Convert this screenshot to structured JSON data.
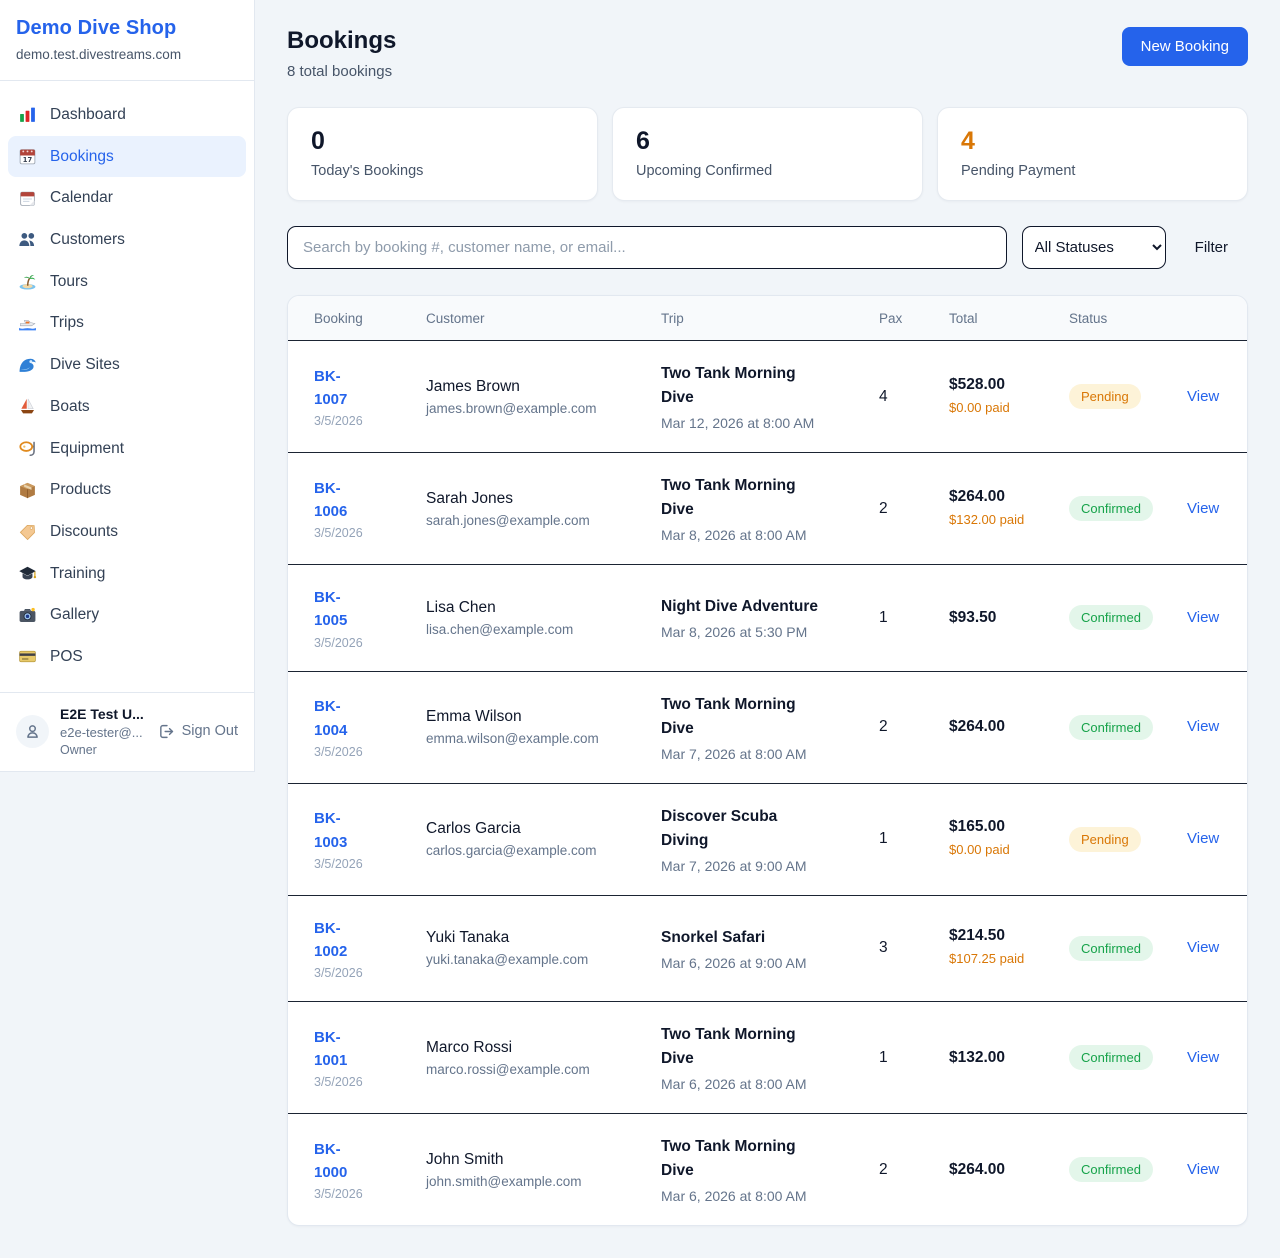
{
  "brand": {
    "name": "Demo Dive Shop",
    "domain": "demo.test.divestreams.com"
  },
  "sidebar": {
    "items": [
      {
        "label": "Dashboard",
        "icon": "dashboard",
        "active": false
      },
      {
        "label": "Bookings",
        "icon": "bookings",
        "active": true
      },
      {
        "label": "Calendar",
        "icon": "calendar",
        "active": false
      },
      {
        "label": "Customers",
        "icon": "customers",
        "active": false
      },
      {
        "label": "Tours",
        "icon": "tours",
        "active": false
      },
      {
        "label": "Trips",
        "icon": "trips",
        "active": false
      },
      {
        "label": "Dive Sites",
        "icon": "dive-sites",
        "active": false
      },
      {
        "label": "Boats",
        "icon": "boats",
        "active": false
      },
      {
        "label": "Equipment",
        "icon": "equipment",
        "active": false
      },
      {
        "label": "Products",
        "icon": "products",
        "active": false
      },
      {
        "label": "Discounts",
        "icon": "discounts",
        "active": false
      },
      {
        "label": "Training",
        "icon": "training",
        "active": false
      },
      {
        "label": "Gallery",
        "icon": "gallery",
        "active": false
      },
      {
        "label": "POS",
        "icon": "pos",
        "active": false
      }
    ]
  },
  "user": {
    "name": "E2E Test U...",
    "email": "e2e-tester@...",
    "role": "Owner",
    "sign_out_label": "Sign Out"
  },
  "header": {
    "title": "Bookings",
    "subtitle": "8 total bookings",
    "new_booking_label": "New Booking"
  },
  "stats": [
    {
      "value": "0",
      "label": "Today's Bookings",
      "highlight": false
    },
    {
      "value": "6",
      "label": "Upcoming Confirmed",
      "highlight": false
    },
    {
      "value": "4",
      "label": "Pending Payment",
      "highlight": true
    }
  ],
  "filters": {
    "search_placeholder": "Search by booking #, customer name, or email...",
    "status_selected": "All Statuses",
    "filter_label": "Filter"
  },
  "table": {
    "columns": [
      "Booking",
      "Customer",
      "Trip",
      "Pax",
      "Total",
      "Status"
    ],
    "view_label": "View",
    "rows": [
      {
        "booking_id": "BK-1007",
        "booking_date": "3/5/2026",
        "customer_name": "James Brown",
        "customer_email": "james.brown@example.com",
        "trip_name": "Two Tank Morning Dive",
        "trip_datetime": "Mar 12, 2026 at 8:00 AM",
        "pax": "4",
        "total": "$528.00",
        "paid": "$0.00 paid",
        "status": "Pending"
      },
      {
        "booking_id": "BK-1006",
        "booking_date": "3/5/2026",
        "customer_name": "Sarah Jones",
        "customer_email": "sarah.jones@example.com",
        "trip_name": "Two Tank Morning Dive",
        "trip_datetime": "Mar 8, 2026 at 8:00 AM",
        "pax": "2",
        "total": "$264.00",
        "paid": "$132.00 paid",
        "status": "Confirmed"
      },
      {
        "booking_id": "BK-1005",
        "booking_date": "3/5/2026",
        "customer_name": "Lisa Chen",
        "customer_email": "lisa.chen@example.com",
        "trip_name": "Night Dive Adventure",
        "trip_datetime": "Mar 8, 2026 at 5:30 PM",
        "pax": "1",
        "total": "$93.50",
        "paid": "",
        "status": "Confirmed"
      },
      {
        "booking_id": "BK-1004",
        "booking_date": "3/5/2026",
        "customer_name": "Emma Wilson",
        "customer_email": "emma.wilson@example.com",
        "trip_name": "Two Tank Morning Dive",
        "trip_datetime": "Mar 7, 2026 at 8:00 AM",
        "pax": "2",
        "total": "$264.00",
        "paid": "",
        "status": "Confirmed"
      },
      {
        "booking_id": "BK-1003",
        "booking_date": "3/5/2026",
        "customer_name": "Carlos Garcia",
        "customer_email": "carlos.garcia@example.com",
        "trip_name": "Discover Scuba Diving",
        "trip_datetime": "Mar 7, 2026 at 9:00 AM",
        "pax": "1",
        "total": "$165.00",
        "paid": "$0.00 paid",
        "status": "Pending"
      },
      {
        "booking_id": "BK-1002",
        "booking_date": "3/5/2026",
        "customer_name": "Yuki Tanaka",
        "customer_email": "yuki.tanaka@example.com",
        "trip_name": "Snorkel Safari",
        "trip_datetime": "Mar 6, 2026 at 9:00 AM",
        "pax": "3",
        "total": "$214.50",
        "paid": "$107.25 paid",
        "status": "Confirmed"
      },
      {
        "booking_id": "BK-1001",
        "booking_date": "3/5/2026",
        "customer_name": "Marco Rossi",
        "customer_email": "marco.rossi@example.com",
        "trip_name": "Two Tank Morning Dive",
        "trip_datetime": "Mar 6, 2026 at 8:00 AM",
        "pax": "1",
        "total": "$132.00",
        "paid": "",
        "status": "Confirmed"
      },
      {
        "booking_id": "BK-1000",
        "booking_date": "3/5/2026",
        "customer_name": "John Smith",
        "customer_email": "john.smith@example.com",
        "trip_name": "Two Tank Morning Dive",
        "trip_datetime": "Mar 6, 2026 at 8:00 AM",
        "pax": "2",
        "total": "$264.00",
        "paid": "",
        "status": "Confirmed"
      }
    ]
  },
  "colors": {
    "accent_blue": "#2563eb",
    "orange": "#d97706",
    "green": "#16a34a",
    "pending_badge_bg": "#fdf3d8",
    "confirmed_badge_bg": "#e3f6ea",
    "page_bg": "#f1f5f9"
  }
}
